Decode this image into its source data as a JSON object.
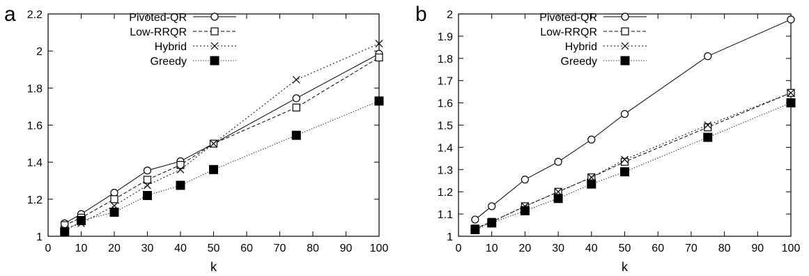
{
  "chart_data": [
    {
      "type": "line",
      "panel_label": "a",
      "xlabel": "k",
      "ylabel": "",
      "xlim": [
        0,
        100
      ],
      "ylim": [
        1,
        2.2
      ],
      "xticks": [
        "0",
        "10",
        "20",
        "30",
        "40",
        "50",
        "60",
        "70",
        "80",
        "90",
        "100"
      ],
      "yticks": [
        "1",
        "1.2",
        "1.4",
        "1.6",
        "1.8",
        "2",
        "2.2"
      ],
      "legend": "top-left",
      "grid": false,
      "x": [
        5,
        10,
        20,
        30,
        40,
        50,
        75,
        100
      ],
      "series": [
        {
          "name": "Pivoted-QR",
          "marker": "open-circle",
          "line": "solid",
          "values": [
            1.07,
            1.12,
            1.235,
            1.355,
            1.405,
            1.5,
            1.745,
            1.985
          ]
        },
        {
          "name": "Low-RRQR",
          "marker": "open-square",
          "line": "dashed",
          "values": [
            1.06,
            1.1,
            1.2,
            1.305,
            1.385,
            1.5,
            1.695,
            1.965
          ]
        },
        {
          "name": "Hybrid",
          "marker": "cross",
          "line": "dotted",
          "values": [
            1.04,
            1.07,
            1.165,
            1.275,
            1.36,
            1.5,
            1.845,
            2.04
          ]
        },
        {
          "name": "Greedy",
          "marker": "filled-square",
          "line": "dotted-fine",
          "values": [
            1.025,
            1.085,
            1.13,
            1.22,
            1.275,
            1.36,
            1.545,
            1.73
          ]
        }
      ]
    },
    {
      "type": "line",
      "panel_label": "b",
      "xlabel": "k",
      "ylabel": "",
      "xlim": [
        0,
        100
      ],
      "ylim": [
        1,
        2
      ],
      "xticks": [
        "0",
        "10",
        "20",
        "30",
        "40",
        "50",
        "60",
        "70",
        "80",
        "90",
        "100"
      ],
      "yticks": [
        "1",
        "1.1",
        "1.2",
        "1.3",
        "1.4",
        "1.5",
        "1.6",
        "1.7",
        "1.8",
        "1.9",
        "2"
      ],
      "legend": "top-left",
      "grid": false,
      "x": [
        5,
        10,
        20,
        30,
        40,
        50,
        75,
        100
      ],
      "series": [
        {
          "name": "Pivoted-QR",
          "marker": "open-circle",
          "line": "solid",
          "values": [
            1.075,
            1.135,
            1.255,
            1.335,
            1.435,
            1.55,
            1.81,
            1.975
          ]
        },
        {
          "name": "Low-RRQR",
          "marker": "open-square",
          "line": "dashed",
          "values": [
            1.035,
            1.065,
            1.135,
            1.2,
            1.265,
            1.335,
            1.49,
            1.645
          ]
        },
        {
          "name": "Hybrid",
          "marker": "cross",
          "line": "dotted",
          "values": [
            1.035,
            1.065,
            1.135,
            1.2,
            1.265,
            1.345,
            1.5,
            1.645
          ]
        },
        {
          "name": "Greedy",
          "marker": "filled-square",
          "line": "dotted-fine",
          "values": [
            1.03,
            1.06,
            1.115,
            1.17,
            1.235,
            1.29,
            1.445,
            1.6
          ]
        }
      ]
    }
  ]
}
